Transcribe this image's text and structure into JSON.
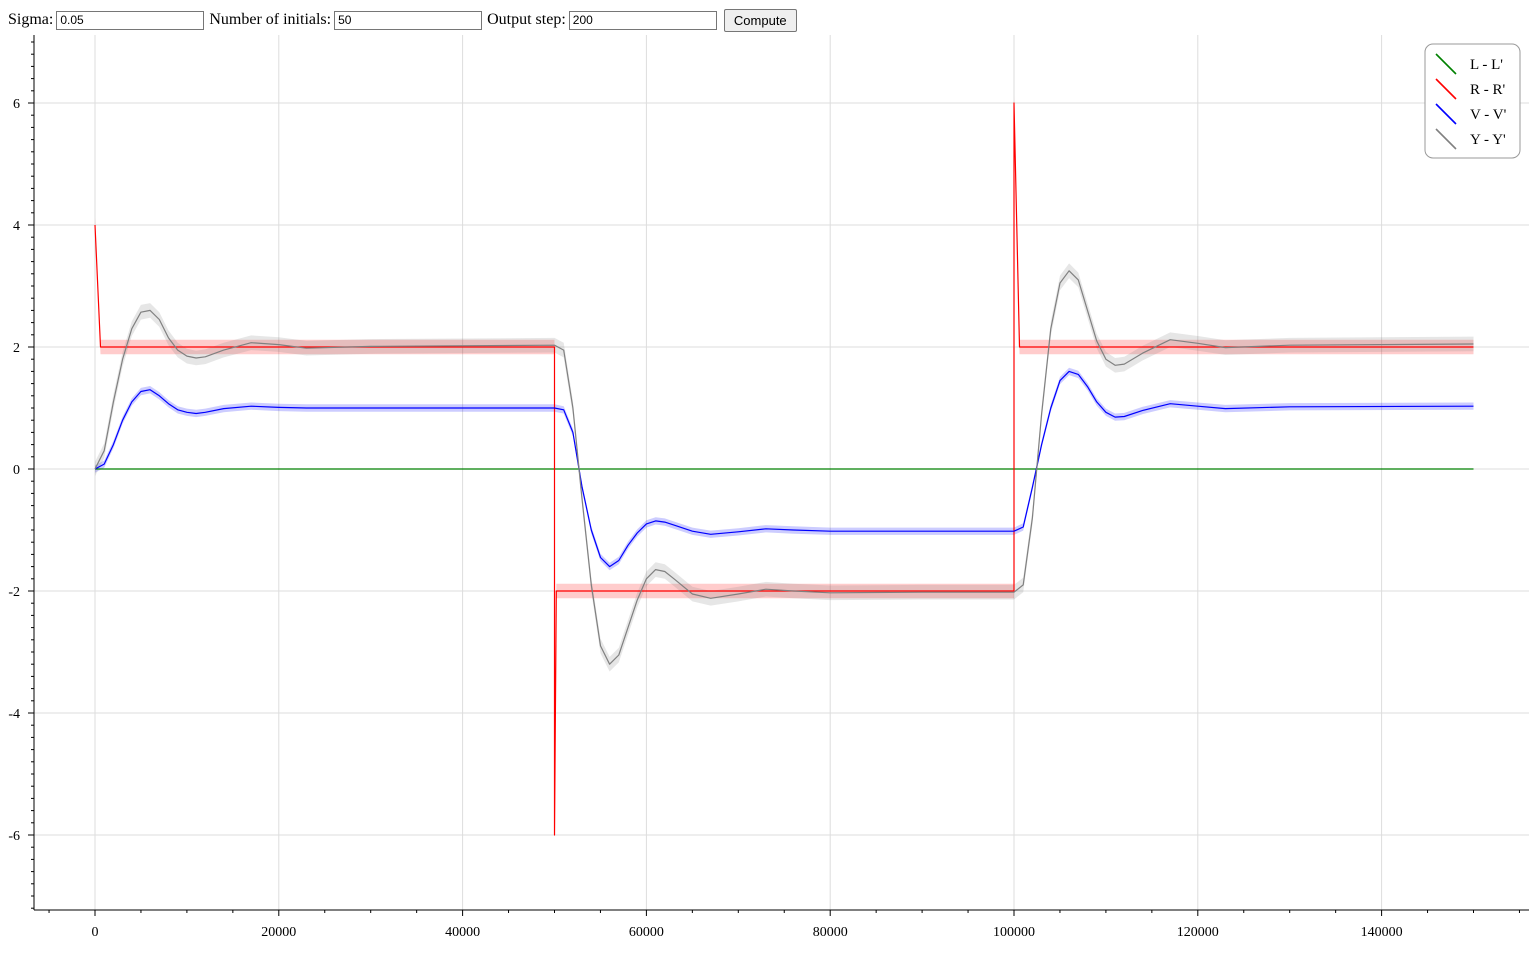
{
  "controls": {
    "sigma_label": "Sigma:",
    "sigma_value": "0.05",
    "initials_label": "Number of initials:",
    "initials_value": "50",
    "step_label": "Output step:",
    "step_value": "200",
    "compute_label": "Compute"
  },
  "chart_data": {
    "type": "line",
    "xlim": [
      -6500,
      155000
    ],
    "ylim": [
      -7.3,
      7.1
    ],
    "x_ticks": [
      0,
      20000,
      40000,
      60000,
      80000,
      100000,
      120000,
      140000
    ],
    "x_tick_labels": [
      "0",
      "20000",
      "40000",
      "60000",
      "80000",
      "100000",
      "120000",
      "140000"
    ],
    "y_ticks": [
      -6,
      -4,
      -2,
      0,
      2,
      4,
      6
    ],
    "y_tick_labels": [
      "-6",
      "-4",
      "-2",
      "0",
      "2",
      "4",
      "6"
    ],
    "grid": true,
    "legend_position": "top-right",
    "series": [
      {
        "name": "L - L'",
        "color": "#008000",
        "band": 0,
        "points": [
          [
            0,
            0
          ],
          [
            150000,
            0
          ]
        ]
      },
      {
        "name": "R - R'",
        "color": "#ff0000",
        "band": 0.12,
        "points": [
          [
            0,
            4
          ],
          [
            600,
            2
          ],
          [
            50000,
            2
          ],
          [
            50000,
            -6
          ],
          [
            50200,
            -2
          ],
          [
            100000,
            -2
          ],
          [
            100000,
            6
          ],
          [
            100600,
            2
          ],
          [
            150000,
            2
          ]
        ]
      },
      {
        "name": "V - V'",
        "color": "#0000ff",
        "band": 0.06,
        "points": [
          [
            0,
            0
          ],
          [
            1000,
            0.08
          ],
          [
            2000,
            0.4
          ],
          [
            3000,
            0.8
          ],
          [
            4000,
            1.1
          ],
          [
            5000,
            1.27
          ],
          [
            6000,
            1.3
          ],
          [
            7000,
            1.2
          ],
          [
            8000,
            1.07
          ],
          [
            9000,
            0.97
          ],
          [
            10000,
            0.93
          ],
          [
            11000,
            0.91
          ],
          [
            12000,
            0.93
          ],
          [
            14000,
            0.99
          ],
          [
            17000,
            1.03
          ],
          [
            20000,
            1.01
          ],
          [
            23000,
            1.0
          ],
          [
            30000,
            1.0
          ],
          [
            50000,
            1.0
          ],
          [
            51000,
            0.97
          ],
          [
            52000,
            0.6
          ],
          [
            53000,
            -0.3
          ],
          [
            54000,
            -1.0
          ],
          [
            55000,
            -1.45
          ],
          [
            56000,
            -1.6
          ],
          [
            57000,
            -1.5
          ],
          [
            58000,
            -1.25
          ],
          [
            59000,
            -1.05
          ],
          [
            60000,
            -0.9
          ],
          [
            61000,
            -0.85
          ],
          [
            62000,
            -0.87
          ],
          [
            63000,
            -0.92
          ],
          [
            65000,
            -1.02
          ],
          [
            67000,
            -1.07
          ],
          [
            70000,
            -1.03
          ],
          [
            73000,
            -0.98
          ],
          [
            76000,
            -1.0
          ],
          [
            80000,
            -1.02
          ],
          [
            90000,
            -1.02
          ],
          [
            100000,
            -1.02
          ],
          [
            101000,
            -0.95
          ],
          [
            102000,
            -0.3
          ],
          [
            103000,
            0.4
          ],
          [
            104000,
            1.0
          ],
          [
            105000,
            1.45
          ],
          [
            106000,
            1.6
          ],
          [
            107000,
            1.55
          ],
          [
            108000,
            1.35
          ],
          [
            109000,
            1.1
          ],
          [
            110000,
            0.93
          ],
          [
            111000,
            0.85
          ],
          [
            112000,
            0.86
          ],
          [
            114000,
            0.96
          ],
          [
            117000,
            1.07
          ],
          [
            120000,
            1.03
          ],
          [
            123000,
            0.99
          ],
          [
            130000,
            1.02
          ],
          [
            150000,
            1.03
          ]
        ]
      },
      {
        "name": "Y - Y'",
        "color": "#808080",
        "band": 0.12,
        "points": [
          [
            0,
            0
          ],
          [
            1000,
            0.3
          ],
          [
            2000,
            1.1
          ],
          [
            3000,
            1.8
          ],
          [
            4000,
            2.3
          ],
          [
            5000,
            2.57
          ],
          [
            6000,
            2.6
          ],
          [
            7000,
            2.45
          ],
          [
            8000,
            2.15
          ],
          [
            9000,
            1.95
          ],
          [
            10000,
            1.85
          ],
          [
            11000,
            1.82
          ],
          [
            12000,
            1.84
          ],
          [
            14000,
            1.95
          ],
          [
            17000,
            2.07
          ],
          [
            20000,
            2.04
          ],
          [
            23000,
            1.98
          ],
          [
            30000,
            2.01
          ],
          [
            50000,
            2.03
          ],
          [
            51000,
            1.95
          ],
          [
            52000,
            1.0
          ],
          [
            53000,
            -0.5
          ],
          [
            54000,
            -1.9
          ],
          [
            55000,
            -2.9
          ],
          [
            56000,
            -3.2
          ],
          [
            57000,
            -3.05
          ],
          [
            58000,
            -2.6
          ],
          [
            59000,
            -2.15
          ],
          [
            60000,
            -1.8
          ],
          [
            61000,
            -1.65
          ],
          [
            62000,
            -1.68
          ],
          [
            63000,
            -1.8
          ],
          [
            65000,
            -2.05
          ],
          [
            67000,
            -2.12
          ],
          [
            70000,
            -2.05
          ],
          [
            73000,
            -1.97
          ],
          [
            76000,
            -2.0
          ],
          [
            80000,
            -2.03
          ],
          [
            90000,
            -2.02
          ],
          [
            100000,
            -2.02
          ],
          [
            101000,
            -1.9
          ],
          [
            102000,
            -0.8
          ],
          [
            103000,
            0.9
          ],
          [
            104000,
            2.3
          ],
          [
            105000,
            3.05
          ],
          [
            106000,
            3.25
          ],
          [
            107000,
            3.1
          ],
          [
            108000,
            2.6
          ],
          [
            109000,
            2.1
          ],
          [
            110000,
            1.8
          ],
          [
            111000,
            1.7
          ],
          [
            112000,
            1.72
          ],
          [
            114000,
            1.9
          ],
          [
            117000,
            2.12
          ],
          [
            120000,
            2.06
          ],
          [
            123000,
            1.99
          ],
          [
            130000,
            2.03
          ],
          [
            150000,
            2.05
          ]
        ]
      }
    ]
  }
}
